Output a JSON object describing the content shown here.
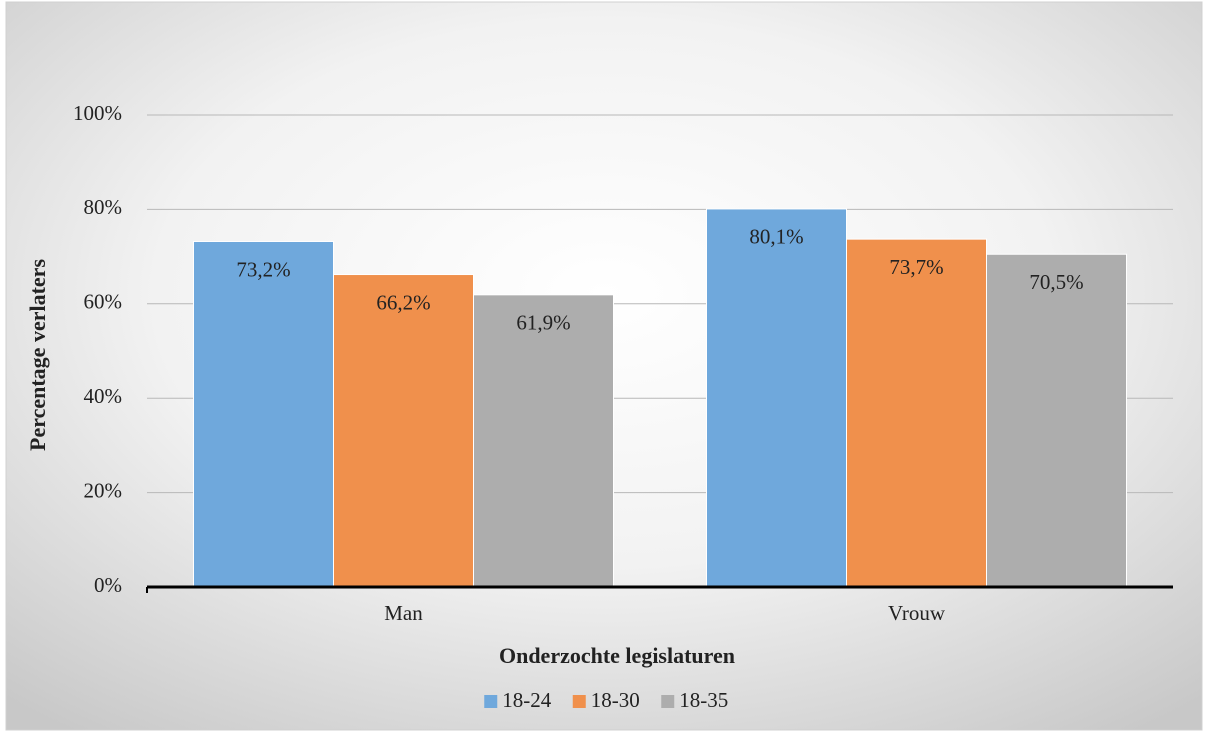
{
  "chart_data": {
    "type": "bar",
    "x_label": "Onderzochte legislaturen",
    "y_label": "Percentage verlaters",
    "categories": [
      "Man",
      "Vrouw"
    ],
    "series": [
      {
        "name": "18-24",
        "color": "#6fa8dc",
        "values": [
          73.2,
          80.1
        ],
        "value_labels": [
          "73,2%",
          "80,1%"
        ]
      },
      {
        "name": "18-30",
        "color": "#f0904c",
        "values": [
          66.2,
          73.7
        ],
        "value_labels": [
          "66,2%",
          "73,7%"
        ]
      },
      {
        "name": "18-35",
        "color": "#adadad",
        "values": [
          61.9,
          70.5
        ],
        "value_labels": [
          "61,9%",
          "70,5%"
        ]
      }
    ],
    "ylim": [
      0,
      100
    ],
    "yticks": [
      {
        "value": 0,
        "label": "0%"
      },
      {
        "value": 20,
        "label": "20%"
      },
      {
        "value": 40,
        "label": "40%"
      },
      {
        "value": 60,
        "label": "60%"
      },
      {
        "value": 80,
        "label": "80%"
      },
      {
        "value": 100,
        "label": "100%"
      }
    ],
    "grid": true,
    "legend": "bottom"
  }
}
